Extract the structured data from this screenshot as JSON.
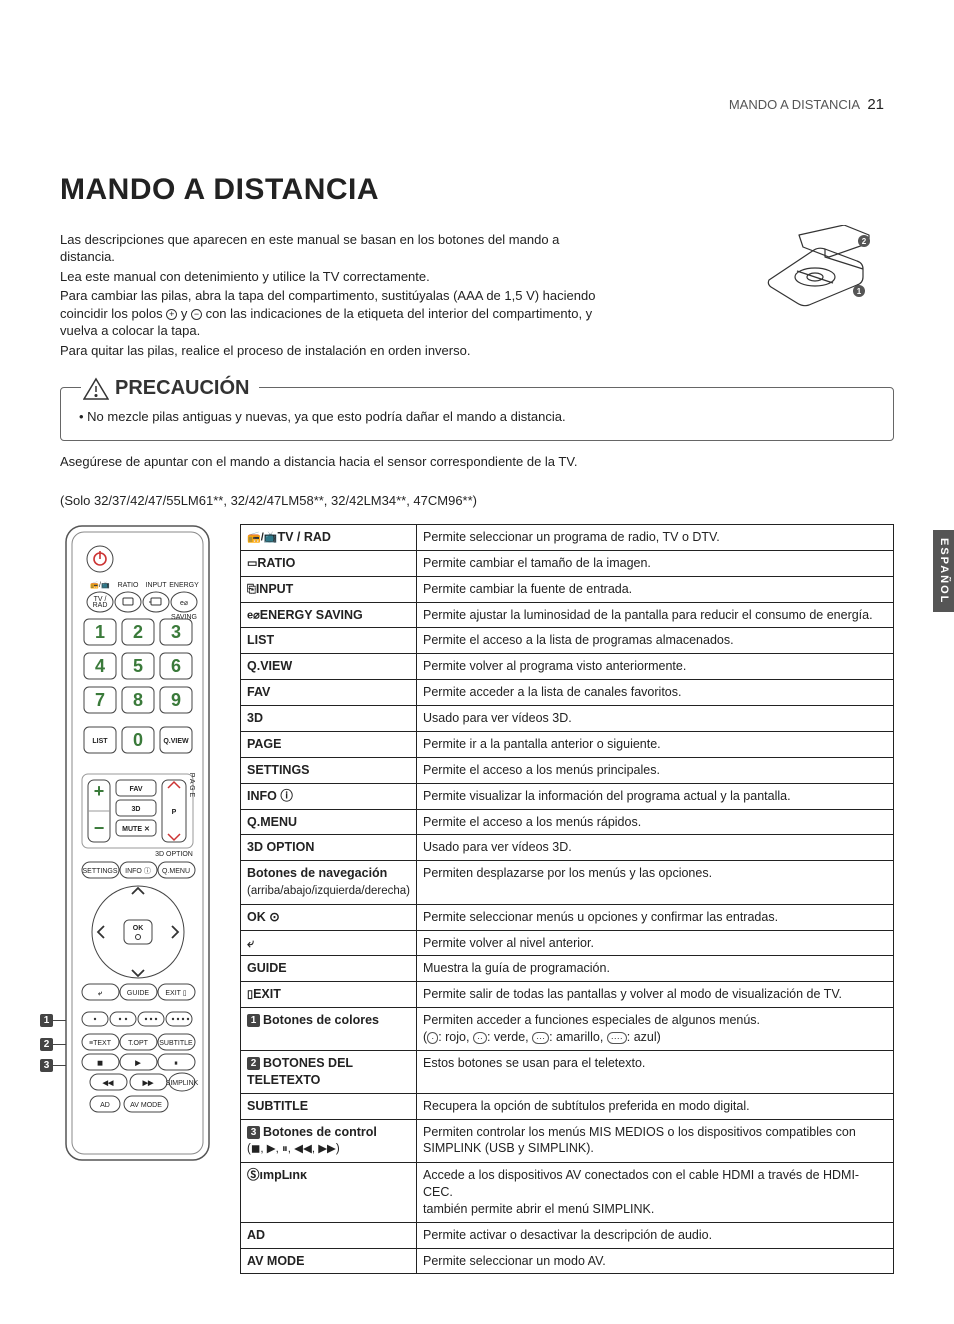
{
  "page": {
    "section": "MANDO A DISTANCIA",
    "number": "21"
  },
  "side_tab": "ESPAÑOL",
  "title": "MANDO A DISTANCIA",
  "intro": {
    "p1a": "Las descripciones que aparecen en este manual se basan en los botones del mando a distancia.",
    "p2": "Lea este manual con detenimiento y utilice la TV correctamente.",
    "p3a": "Para cambiar las pilas, abra la tapa del compartimento, sustitúyalas (AAA de 1,5 V) haciendo coincidir los polos ",
    "p3b": " y ",
    "p3c": " con las indicaciones de la etiqueta del interior del compartimento, y vuelva a colocar la tapa.",
    "p4": "Para quitar las pilas, realice el proceso de instalación en orden inverso."
  },
  "caution": {
    "label": "PRECAUCIÓN",
    "item1": "No mezcle pilas antiguas y nuevas, ya que esto podría dañar el mando a distancia."
  },
  "after_caution": "Asegúrese de apuntar con el mando a distancia hacia el sensor correspondiente de la TV.",
  "models": "(Solo 32/37/42/47/55LM61**, 32/42/47LM58**, 32/42LM34**, 47CM96**)",
  "remote": {
    "labels": {
      "ratio": "RATIO",
      "input": "INPUT",
      "energy": "ENERGY",
      "tvrad": "TV /\nRAD",
      "saving": "SAVING",
      "list": "LIST",
      "qview": "Q.VIEW",
      "fav": "FAV",
      "threeD": "3D",
      "mute": "MUTE",
      "p": "P",
      "threeDopt": "3D OPTION",
      "settings": "SETTINGS",
      "info": "INFO",
      "qmenu": "Q.MENU",
      "ok": "OK",
      "back": "↶",
      "guide": "GUIDE",
      "exit": "EXIT",
      "text": "TEXT",
      "topt": "T.OPT",
      "subtitle": "SUBTITLE",
      "ad": "AD",
      "avmode": "AV MODE",
      "nums": [
        "1",
        "2",
        "3",
        "4",
        "5",
        "6",
        "7",
        "8",
        "9",
        "0"
      ]
    }
  },
  "rows": [
    {
      "k": "TV / RAD",
      "icon": "📻/📺",
      "v": "Permite seleccionar un programa de radio, TV o DTV."
    },
    {
      "k": "RATIO",
      "icon": "▭",
      "v": "Permite cambiar el tamaño de la imagen."
    },
    {
      "k": "INPUT",
      "icon": "⎘",
      "v": "Permite cambiar la fuente de entrada."
    },
    {
      "k": "ENERGY SAVING",
      "icon": "e⌀",
      "v": "Permite ajustar la luminosidad de la pantalla para reducir el consumo de energía."
    },
    {
      "k": "LIST",
      "v": "Permite el acceso a la lista de programas almacenados."
    },
    {
      "k": "Q.VIEW",
      "v": "Permite volver al programa visto anteriormente."
    },
    {
      "k": "FAV",
      "v": "Permite acceder a la lista de canales favoritos."
    },
    {
      "k": "3D",
      "sym": true,
      "v": "Usado para ver vídeos 3D."
    },
    {
      "k": "PAGE",
      "v": "Permite ir a la pantalla anterior o siguiente."
    },
    {
      "k": "SETTINGS",
      "v": "Permite el acceso a los menús principales."
    },
    {
      "k": "INFO ⓘ",
      "v": "Permite visualizar la información del programa actual y la pantalla."
    },
    {
      "k": "Q.MENU",
      "v": "Permite el acceso a los menús rápidos."
    },
    {
      "k": "3D OPTION",
      "v": "Usado para ver vídeos 3D."
    },
    {
      "k": "Botones de navegación",
      "sub": "(arriba/abajo/izquierda/derecha)",
      "v": "Permiten desplazarse por los menús y las opciones."
    },
    {
      "k": "OK ⊙",
      "v": "Permite seleccionar menús u opciones y confirmar las entradas."
    },
    {
      "k": "⤶",
      "sym": true,
      "v": "Permite volver al nivel anterior."
    },
    {
      "k": "GUIDE",
      "v": "Muestra la guía de programación."
    },
    {
      "k": "EXIT",
      "icon": "▯",
      "v": "Permite salir de todas las pantallas y volver al modo de visualización de TV."
    },
    {
      "tag": "1",
      "k": "Botones de colores",
      "knorm": true,
      "v_html": "Permiten acceder a funciones especiales de algunos menús.<br>(<span class='colorpill'>·</span>: rojo, <span class='colorpill'>··</span>: verde, <span class='colorpill'>···</span>: amarillo, <span class='colorpill'>····</span>: azul)"
    },
    {
      "tag": "2",
      "k": "BOTONES DEL TELETEXTO",
      "v": "Estos botones se usan para el teletexto."
    },
    {
      "k": "SUBTITLE",
      "v": "Recupera la opción de subtítulos preferida en modo digital."
    },
    {
      "tag": "3",
      "k": "Botones de control",
      "knorm": true,
      "sub": "(◼, ▶, ⏸, ◀◀, ▶▶)",
      "v": "Permiten controlar los menús MIS MEDIOS o los dispositivos compatibles con SIMPLINK (USB y SIMPLINK)."
    },
    {
      "k": "SIMPLINK",
      "simplink": true,
      "v_html": "Accede a los dispositivos AV conectados con el cable HDMI a través de HDMI-CEC.<br>también permite abrir el menú SIMPLINK."
    },
    {
      "k": "AD",
      "v": "Permite activar o desactivar la descripción de audio."
    },
    {
      "k": "AV MODE",
      "v": "Permite seleccionar un modo AV."
    }
  ],
  "colors": {
    "text": "#222222",
    "border": "#222222",
    "muted": "#555555",
    "sidetab_bg": "#555555",
    "tag_bg": "#444444"
  }
}
